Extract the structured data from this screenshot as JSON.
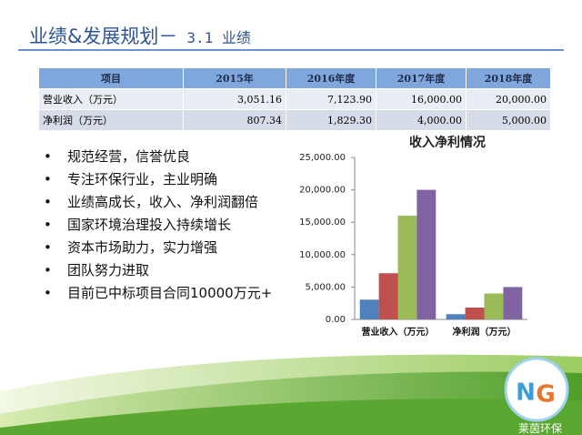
{
  "header": {
    "title": "业绩&发展规划－",
    "subtitle": "3.1 业绩"
  },
  "table": {
    "columns": [
      "项目",
      "2015年",
      "2016年度",
      "2017年度",
      "2018年度"
    ],
    "rows": [
      [
        "营业收入（万元）",
        "3,051.16",
        "7,123.90",
        "16,000.00",
        "20,000.00"
      ],
      [
        "净利润（万元）",
        "807.34",
        "1,829.30",
        "4,000.00",
        "5,000.00"
      ]
    ]
  },
  "bullets": [
    "规范经营，信誉优良",
    "专注环保行业，主业明确",
    "业绩高成长，收入、净利润翻倍",
    "国家环境治理投入持续增长",
    "资本市场助力，实力增强",
    "团队努力进取",
    "目前已中标项目合同10000万元+"
  ],
  "logo": {
    "text": "莱茵环保"
  },
  "chart_data": {
    "type": "bar",
    "title": "收入净利情况",
    "categories": [
      "营业收入（万元）",
      "净利润（万元）"
    ],
    "series": [
      {
        "color": "#4f81bd",
        "values": [
          3051.16,
          807.34
        ]
      },
      {
        "color": "#c0504d",
        "values": [
          7123.9,
          1829.3
        ]
      },
      {
        "color": "#9bbb59",
        "values": [
          16000,
          4000
        ]
      },
      {
        "color": "#8064a2",
        "values": [
          20000,
          5000
        ]
      }
    ],
    "ylim": [
      0,
      25000
    ],
    "yticks": [
      {
        "value": 0,
        "label": "0.00"
      },
      {
        "value": 5000,
        "label": "5,000.00"
      },
      {
        "value": 10000,
        "label": "10,000.00"
      },
      {
        "value": 15000,
        "label": "15,000.00"
      },
      {
        "value": 20000,
        "label": "20,000.00"
      },
      {
        "value": 25000,
        "label": "25,000.00"
      }
    ],
    "grid": false
  }
}
